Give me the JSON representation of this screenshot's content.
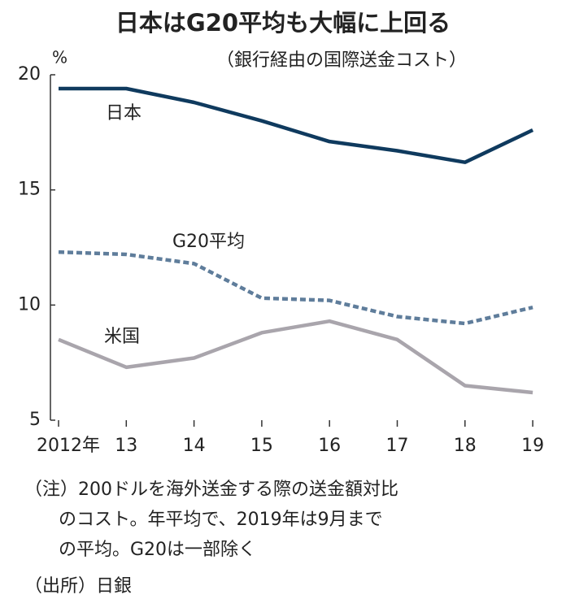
{
  "chart_data": {
    "type": "line",
    "title": "日本はG20平均も大幅に上回る",
    "subtitle": "（銀行経由の国際送金コスト）",
    "y_unit": "%",
    "categories": [
      "2012年",
      "13",
      "14",
      "15",
      "16",
      "17",
      "18",
      "19"
    ],
    "series": [
      {
        "name": "日本",
        "color": "#0f3a5e",
        "dashed": false,
        "values": [
          19.4,
          19.4,
          18.8,
          18.0,
          17.1,
          16.7,
          16.2,
          17.6
        ]
      },
      {
        "name": "G20平均",
        "color": "#5f7d9b",
        "dashed": true,
        "values": [
          12.3,
          12.2,
          11.8,
          10.3,
          10.2,
          9.5,
          9.2,
          9.9
        ]
      },
      {
        "name": "米国",
        "color": "#a9a5ac",
        "dashed": false,
        "values": [
          8.5,
          7.3,
          7.7,
          8.8,
          9.3,
          8.5,
          6.5,
          6.2
        ]
      }
    ],
    "ylim": [
      5,
      20
    ],
    "yticks": [
      5,
      10,
      15,
      20
    ],
    "grid": false,
    "notes": [
      "（注）200ドルを海外送金する際の送金額対比",
      "のコスト。年平均で、2019年は9月まで",
      "の平均。G20は一部除く"
    ],
    "source": "（出所）日銀"
  }
}
